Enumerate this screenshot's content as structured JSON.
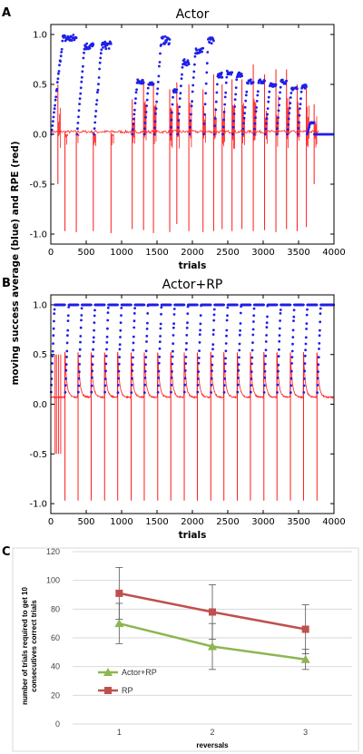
{
  "panel_labels": [
    "A",
    "B",
    "C"
  ],
  "shared_ylabel": "moving success average (blue) and RPE (red)",
  "colors": {
    "success": "#1f1fe8",
    "rpe": "#ff1a1a",
    "actor_rp": "#8db650",
    "rp": "#c0504d",
    "grid": "#d9d9d9",
    "errorbar": "#555555"
  },
  "chart_data": [
    {
      "type": "line",
      "title": "Actor",
      "xlabel": "trials",
      "ylabel": "moving success average (blue) and RPE (red)",
      "xlim": [
        0,
        4000
      ],
      "ylim": [
        -1.1,
        1.1
      ],
      "xticks": [
        0,
        500,
        1000,
        1500,
        2000,
        2500,
        3000,
        3500,
        4000
      ],
      "yticks": [
        "-1.0",
        "-0.5",
        "0.0",
        "0.5",
        "1.0"
      ],
      "series": [
        {
          "name": "moving success average",
          "style": "dots",
          "color": "blue",
          "episodes": [
            {
              "start": 10,
              "end": 360,
              "peak": 1.0
            },
            {
              "start": 370,
              "end": 600,
              "peak": 0.92
            },
            {
              "start": 610,
              "end": 850,
              "peak": 0.93
            },
            {
              "start": 1150,
              "end": 1310,
              "peak": 0.55
            },
            {
              "start": 1320,
              "end": 1450,
              "peak": 0.52
            },
            {
              "start": 1460,
              "end": 1680,
              "peak": 0.98
            },
            {
              "start": 1690,
              "end": 1780,
              "peak": 0.45
            },
            {
              "start": 1790,
              "end": 1950,
              "peak": 0.75
            },
            {
              "start": 1960,
              "end": 2150,
              "peak": 0.88
            },
            {
              "start": 2160,
              "end": 2300,
              "peak": 0.97
            },
            {
              "start": 2310,
              "end": 2420,
              "peak": 0.62
            },
            {
              "start": 2430,
              "end": 2560,
              "peak": 0.65
            },
            {
              "start": 2570,
              "end": 2700,
              "peak": 0.62
            },
            {
              "start": 2710,
              "end": 2860,
              "peak": 0.55
            },
            {
              "start": 2870,
              "end": 3020,
              "peak": 0.55
            },
            {
              "start": 3030,
              "end": 3180,
              "peak": 0.52
            },
            {
              "start": 3190,
              "end": 3330,
              "peak": 0.55
            },
            {
              "start": 3340,
              "end": 3480,
              "peak": 0.48
            },
            {
              "start": 3490,
              "end": 3610,
              "peak": 0.5
            },
            {
              "start": 3620,
              "end": 3720,
              "peak": 0.12
            }
          ]
        },
        {
          "name": "RPE",
          "style": "line",
          "color": "red",
          "reversals": [
            {
              "t": 100,
              "neg": -0.5,
              "pos": 0.5
            },
            {
              "t": 200,
              "neg": -0.97,
              "pos": 0.0
            },
            {
              "t": 360,
              "neg": -0.98,
              "pos": 0.0
            },
            {
              "t": 600,
              "neg": -0.97,
              "pos": 0.0
            },
            {
              "t": 850,
              "neg": -0.99,
              "pos": 0.0
            },
            {
              "t": 1150,
              "neg": -0.95,
              "pos": 0.35
            },
            {
              "t": 1310,
              "neg": -0.96,
              "pos": 0.55
            },
            {
              "t": 1450,
              "neg": -0.99,
              "pos": 0.5
            },
            {
              "t": 1680,
              "neg": -0.98,
              "pos": 0.45
            },
            {
              "t": 1780,
              "neg": -0.9,
              "pos": 0.52
            },
            {
              "t": 1950,
              "neg": -0.97,
              "pos": 0.5
            },
            {
              "t": 2150,
              "neg": -0.98,
              "pos": 0.45
            },
            {
              "t": 2300,
              "neg": -0.97,
              "pos": 0.6
            },
            {
              "t": 2420,
              "neg": -0.95,
              "pos": 0.5
            },
            {
              "t": 2560,
              "neg": -0.97,
              "pos": 0.55
            },
            {
              "t": 2700,
              "neg": -0.95,
              "pos": 0.55
            },
            {
              "t": 2860,
              "neg": -0.97,
              "pos": 0.7
            },
            {
              "t": 3020,
              "neg": -0.96,
              "pos": 0.6
            },
            {
              "t": 3180,
              "neg": -0.98,
              "pos": 0.65
            },
            {
              "t": 3330,
              "neg": -0.95,
              "pos": 0.65
            },
            {
              "t": 3480,
              "neg": -0.97,
              "pos": 0.5
            },
            {
              "t": 3610,
              "neg": -0.93,
              "pos": 0.5
            },
            {
              "t": 3720,
              "neg": -0.5,
              "pos": 0.3
            }
          ]
        }
      ]
    },
    {
      "type": "line",
      "title": "Actor+RP",
      "xlabel": "trials",
      "ylabel": "moving success average (blue) and RPE (red)",
      "xlim": [
        0,
        4000
      ],
      "ylim": [
        -1.1,
        1.1
      ],
      "xticks": [
        0,
        500,
        1000,
        1500,
        2000,
        2500,
        3000,
        3500,
        4000
      ],
      "yticks": [
        "-1.0",
        "-0.5",
        "0.0",
        "0.5",
        "1.0"
      ],
      "series": [
        {
          "name": "moving success average",
          "style": "dots",
          "color": "blue",
          "reversal_trials": [
            200,
            385,
            570,
            760,
            945,
            1135,
            1320,
            1510,
            1695,
            1885,
            2070,
            2260,
            2445,
            2635,
            2820,
            3010,
            3195,
            3385,
            3570,
            3760
          ],
          "plateau": 1.0
        },
        {
          "name": "RPE",
          "style": "line",
          "color": "red",
          "reversal_trials": [
            200,
            385,
            570,
            760,
            945,
            1135,
            1320,
            1510,
            1695,
            1885,
            2070,
            2260,
            2445,
            2635,
            2820,
            3010,
            3195,
            3385,
            3570,
            3760
          ],
          "peak_neg": -0.97,
          "peak_pos": 0.52,
          "baseline": 0.07
        }
      ]
    },
    {
      "type": "line",
      "title": "",
      "xlabel": "reversals",
      "ylabel_lines": [
        "number of trials required to get 10",
        "consecutives correct trials"
      ],
      "categories": [
        "1",
        "2",
        "3"
      ],
      "ylim": [
        0,
        120
      ],
      "yticks": [
        0,
        20,
        40,
        60,
        80,
        100,
        120
      ],
      "grid": true,
      "legend": "bottom-left",
      "series": [
        {
          "name": "Actor+RP",
          "marker": "triangle",
          "values": [
            70,
            54,
            45
          ],
          "error": [
            14,
            16,
            7
          ]
        },
        {
          "name": "RP",
          "marker": "square",
          "values": [
            91,
            78,
            66
          ],
          "error": [
            18,
            19,
            17
          ]
        }
      ]
    }
  ]
}
